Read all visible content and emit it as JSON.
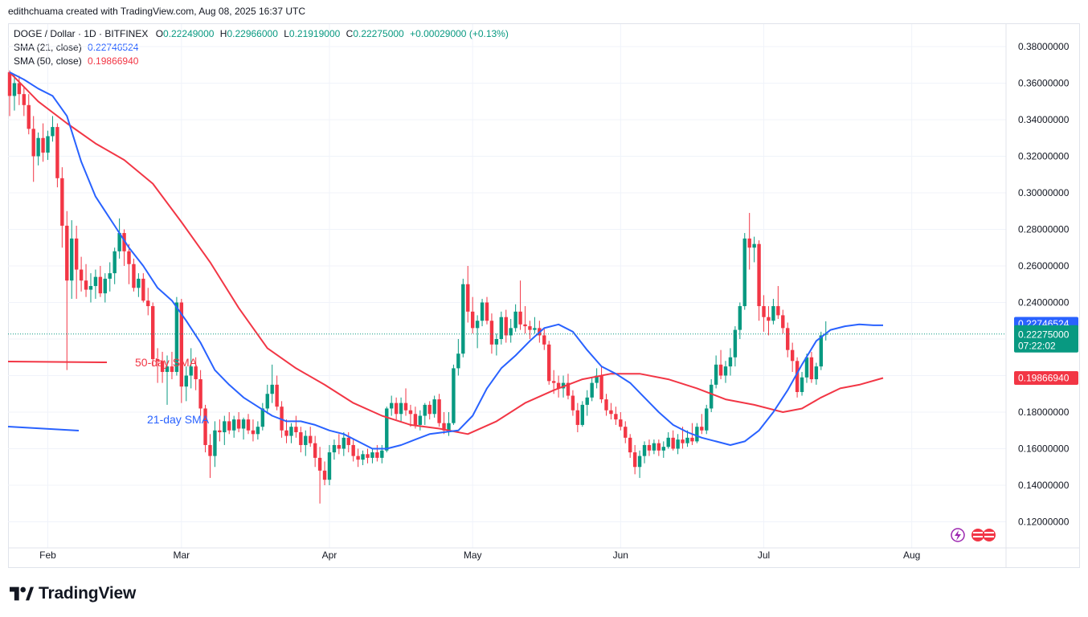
{
  "header": {
    "text": "edithchuama created with TradingView.com, Aug 08, 2025 16:37 UTC"
  },
  "legend": {
    "symbol": "DOGE / Dollar · 1D · BITFINEX",
    "open_label": "O",
    "open": "0.22249000",
    "high_label": "H",
    "high": "0.22966000",
    "low_label": "L",
    "low": "0.21919000",
    "close_label": "C",
    "close": "0.22275000",
    "change": "+0.00029000 (+0.13%)",
    "sma21_label": "SMA (21, close)",
    "sma21_value": "0.22746524",
    "sma50_label": "SMA (50, close)",
    "sma50_value": "0.19866940"
  },
  "footer": {
    "brand": "TradingView"
  },
  "chart_data": {
    "type": "candlestick",
    "title": "DOGE / Dollar · 1D · BITFINEX",
    "y_range": [
      0.11,
      0.39
    ],
    "y_ticks": [
      "0.38000000",
      "0.36000000",
      "0.34000000",
      "0.32000000",
      "0.30000000",
      "0.28000000",
      "0.26000000",
      "0.24000000",
      "0.22000000",
      "0.20000000",
      "0.18000000",
      "0.16000000",
      "0.14000000",
      "0.12000000"
    ],
    "x_ticks": [
      {
        "label": "Feb",
        "day": 8
      },
      {
        "label": "Mar",
        "day": 36
      },
      {
        "label": "Apr",
        "day": 67
      },
      {
        "label": "May",
        "day": 97
      },
      {
        "label": "Jun",
        "day": 128
      },
      {
        "label": "Jul",
        "day": 158
      },
      {
        "label": "Aug",
        "day": 189
      }
    ],
    "price_badges": {
      "sma21": "0.22746524",
      "last": "0.22275000",
      "countdown": "07:22:02",
      "sma50": "0.19866940"
    },
    "annotations": {
      "sma50": "50-day SMA",
      "sma21": "21-day SMA"
    },
    "colors": {
      "up": "#089981",
      "down": "#f23645",
      "sma21": "#2962ff",
      "sma50": "#f23645",
      "grid": "#f0f3fa"
    },
    "ohlc": [
      [
        0.366,
        0.367,
        0.342,
        0.353
      ],
      [
        0.353,
        0.365,
        0.345,
        0.36
      ],
      [
        0.36,
        0.364,
        0.348,
        0.354
      ],
      [
        0.354,
        0.358,
        0.342,
        0.348
      ],
      [
        0.348,
        0.354,
        0.332,
        0.335
      ],
      [
        0.335,
        0.342,
        0.306,
        0.32
      ],
      [
        0.32,
        0.333,
        0.315,
        0.33
      ],
      [
        0.33,
        0.338,
        0.317,
        0.322
      ],
      [
        0.322,
        0.334,
        0.318,
        0.331
      ],
      [
        0.331,
        0.342,
        0.328,
        0.336
      ],
      [
        0.336,
        0.338,
        0.303,
        0.308
      ],
      [
        0.308,
        0.314,
        0.27,
        0.282
      ],
      [
        0.282,
        0.29,
        0.203,
        0.252
      ],
      [
        0.252,
        0.285,
        0.242,
        0.275
      ],
      [
        0.275,
        0.282,
        0.242,
        0.258
      ],
      [
        0.258,
        0.265,
        0.246,
        0.252
      ],
      [
        0.252,
        0.261,
        0.243,
        0.247
      ],
      [
        0.247,
        0.256,
        0.24,
        0.249
      ],
      [
        0.249,
        0.258,
        0.242,
        0.254
      ],
      [
        0.254,
        0.26,
        0.243,
        0.245
      ],
      [
        0.245,
        0.256,
        0.24,
        0.253
      ],
      [
        0.253,
        0.262,
        0.246,
        0.256
      ],
      [
        0.256,
        0.27,
        0.25,
        0.268
      ],
      [
        0.268,
        0.286,
        0.264,
        0.278
      ],
      [
        0.278,
        0.28,
        0.26,
        0.268
      ],
      [
        0.268,
        0.272,
        0.25,
        0.261
      ],
      [
        0.261,
        0.264,
        0.246,
        0.248
      ],
      [
        0.248,
        0.256,
        0.243,
        0.253
      ],
      [
        0.253,
        0.256,
        0.24,
        0.241
      ],
      [
        0.241,
        0.248,
        0.233,
        0.238
      ],
      [
        0.238,
        0.24,
        0.205,
        0.209
      ],
      [
        0.209,
        0.215,
        0.196,
        0.208
      ],
      [
        0.208,
        0.213,
        0.196,
        0.202
      ],
      [
        0.202,
        0.211,
        0.184,
        0.205
      ],
      [
        0.205,
        0.213,
        0.198,
        0.202
      ],
      [
        0.202,
        0.243,
        0.2,
        0.24
      ],
      [
        0.24,
        0.242,
        0.185,
        0.194
      ],
      [
        0.194,
        0.205,
        0.186,
        0.2
      ],
      [
        0.2,
        0.215,
        0.193,
        0.205
      ],
      [
        0.205,
        0.21,
        0.192,
        0.198
      ],
      [
        0.198,
        0.203,
        0.178,
        0.182
      ],
      [
        0.182,
        0.184,
        0.158,
        0.162
      ],
      [
        0.162,
        0.168,
        0.144,
        0.156
      ],
      [
        0.156,
        0.175,
        0.15,
        0.17
      ],
      [
        0.17,
        0.176,
        0.164,
        0.169
      ],
      [
        0.169,
        0.178,
        0.162,
        0.175
      ],
      [
        0.175,
        0.18,
        0.168,
        0.17
      ],
      [
        0.17,
        0.178,
        0.166,
        0.176
      ],
      [
        0.176,
        0.18,
        0.169,
        0.171
      ],
      [
        0.171,
        0.177,
        0.165,
        0.176
      ],
      [
        0.176,
        0.179,
        0.168,
        0.17
      ],
      [
        0.17,
        0.176,
        0.164,
        0.168
      ],
      [
        0.168,
        0.175,
        0.165,
        0.172
      ],
      [
        0.172,
        0.185,
        0.17,
        0.182
      ],
      [
        0.182,
        0.195,
        0.179,
        0.19
      ],
      [
        0.19,
        0.206,
        0.185,
        0.195
      ],
      [
        0.195,
        0.2,
        0.181,
        0.183
      ],
      [
        0.183,
        0.186,
        0.166,
        0.17
      ],
      [
        0.17,
        0.176,
        0.163,
        0.167
      ],
      [
        0.167,
        0.174,
        0.163,
        0.172
      ],
      [
        0.172,
        0.178,
        0.166,
        0.169
      ],
      [
        0.169,
        0.172,
        0.158,
        0.162
      ],
      [
        0.162,
        0.17,
        0.156,
        0.167
      ],
      [
        0.167,
        0.172,
        0.161,
        0.163
      ],
      [
        0.163,
        0.167,
        0.15,
        0.155
      ],
      [
        0.155,
        0.161,
        0.13,
        0.148
      ],
      [
        0.148,
        0.153,
        0.14,
        0.143
      ],
      [
        0.143,
        0.162,
        0.14,
        0.158
      ],
      [
        0.158,
        0.165,
        0.154,
        0.162
      ],
      [
        0.162,
        0.168,
        0.157,
        0.16
      ],
      [
        0.16,
        0.169,
        0.156,
        0.166
      ],
      [
        0.166,
        0.169,
        0.158,
        0.162
      ],
      [
        0.162,
        0.165,
        0.153,
        0.156
      ],
      [
        0.156,
        0.16,
        0.15,
        0.154
      ],
      [
        0.154,
        0.159,
        0.151,
        0.157
      ],
      [
        0.157,
        0.16,
        0.152,
        0.155
      ],
      [
        0.155,
        0.16,
        0.152,
        0.158
      ],
      [
        0.158,
        0.162,
        0.153,
        0.155
      ],
      [
        0.155,
        0.162,
        0.152,
        0.159
      ],
      [
        0.159,
        0.183,
        0.158,
        0.182
      ],
      [
        0.182,
        0.189,
        0.178,
        0.185
      ],
      [
        0.185,
        0.188,
        0.176,
        0.179
      ],
      [
        0.179,
        0.188,
        0.175,
        0.185
      ],
      [
        0.185,
        0.193,
        0.178,
        0.181
      ],
      [
        0.181,
        0.184,
        0.172,
        0.179
      ],
      [
        0.179,
        0.183,
        0.171,
        0.173
      ],
      [
        0.173,
        0.181,
        0.17,
        0.178
      ],
      [
        0.178,
        0.185,
        0.173,
        0.184
      ],
      [
        0.184,
        0.186,
        0.176,
        0.179
      ],
      [
        0.179,
        0.189,
        0.177,
        0.187
      ],
      [
        0.187,
        0.19,
        0.172,
        0.174
      ],
      [
        0.174,
        0.18,
        0.168,
        0.17
      ],
      [
        0.17,
        0.18,
        0.167,
        0.174
      ],
      [
        0.174,
        0.206,
        0.173,
        0.204
      ],
      [
        0.204,
        0.22,
        0.2,
        0.212
      ],
      [
        0.212,
        0.253,
        0.21,
        0.25
      ],
      [
        0.25,
        0.26,
        0.229,
        0.235
      ],
      [
        0.235,
        0.243,
        0.223,
        0.226
      ],
      [
        0.226,
        0.233,
        0.215,
        0.23
      ],
      [
        0.23,
        0.242,
        0.227,
        0.24
      ],
      [
        0.24,
        0.243,
        0.228,
        0.23
      ],
      [
        0.23,
        0.234,
        0.212,
        0.217
      ],
      [
        0.217,
        0.223,
        0.211,
        0.22
      ],
      [
        0.22,
        0.235,
        0.217,
        0.232
      ],
      [
        0.232,
        0.236,
        0.218,
        0.222
      ],
      [
        0.222,
        0.231,
        0.218,
        0.226
      ],
      [
        0.226,
        0.239,
        0.224,
        0.235
      ],
      [
        0.235,
        0.252,
        0.225,
        0.228
      ],
      [
        0.228,
        0.238,
        0.223,
        0.227
      ],
      [
        0.227,
        0.23,
        0.22,
        0.225
      ],
      [
        0.225,
        0.232,
        0.223,
        0.226
      ],
      [
        0.226,
        0.23,
        0.218,
        0.222
      ],
      [
        0.222,
        0.226,
        0.214,
        0.217
      ],
      [
        0.217,
        0.219,
        0.195,
        0.197
      ],
      [
        0.197,
        0.203,
        0.19,
        0.196
      ],
      [
        0.196,
        0.2,
        0.188,
        0.193
      ],
      [
        0.193,
        0.2,
        0.188,
        0.196
      ],
      [
        0.196,
        0.201,
        0.187,
        0.189
      ],
      [
        0.189,
        0.192,
        0.178,
        0.181
      ],
      [
        0.181,
        0.185,
        0.169,
        0.173
      ],
      [
        0.173,
        0.186,
        0.172,
        0.184
      ],
      [
        0.184,
        0.192,
        0.178,
        0.188
      ],
      [
        0.188,
        0.199,
        0.186,
        0.196
      ],
      [
        0.196,
        0.204,
        0.193,
        0.2
      ],
      [
        0.2,
        0.205,
        0.185,
        0.187
      ],
      [
        0.187,
        0.19,
        0.178,
        0.181
      ],
      [
        0.181,
        0.185,
        0.176,
        0.179
      ],
      [
        0.179,
        0.183,
        0.173,
        0.176
      ],
      [
        0.176,
        0.18,
        0.17,
        0.172
      ],
      [
        0.172,
        0.175,
        0.163,
        0.166
      ],
      [
        0.166,
        0.168,
        0.155,
        0.158
      ],
      [
        0.158,
        0.162,
        0.146,
        0.15
      ],
      [
        0.15,
        0.159,
        0.144,
        0.156
      ],
      [
        0.156,
        0.164,
        0.152,
        0.162
      ],
      [
        0.162,
        0.165,
        0.156,
        0.159
      ],
      [
        0.159,
        0.165,
        0.157,
        0.163
      ],
      [
        0.163,
        0.165,
        0.156,
        0.159
      ],
      [
        0.159,
        0.164,
        0.155,
        0.161
      ],
      [
        0.161,
        0.169,
        0.16,
        0.166
      ],
      [
        0.166,
        0.17,
        0.159,
        0.16
      ],
      [
        0.16,
        0.168,
        0.157,
        0.165
      ],
      [
        0.165,
        0.172,
        0.16,
        0.163
      ],
      [
        0.163,
        0.17,
        0.161,
        0.166
      ],
      [
        0.166,
        0.174,
        0.162,
        0.164
      ],
      [
        0.164,
        0.174,
        0.163,
        0.172
      ],
      [
        0.172,
        0.179,
        0.168,
        0.17
      ],
      [
        0.17,
        0.184,
        0.168,
        0.182
      ],
      [
        0.182,
        0.198,
        0.18,
        0.195
      ],
      [
        0.195,
        0.211,
        0.193,
        0.206
      ],
      [
        0.206,
        0.214,
        0.198,
        0.2
      ],
      [
        0.2,
        0.208,
        0.196,
        0.205
      ],
      [
        0.205,
        0.215,
        0.2,
        0.21
      ],
      [
        0.21,
        0.227,
        0.205,
        0.225
      ],
      [
        0.225,
        0.24,
        0.22,
        0.238
      ],
      [
        0.238,
        0.278,
        0.236,
        0.275
      ],
      [
        0.275,
        0.289,
        0.258,
        0.27
      ],
      [
        0.27,
        0.276,
        0.262,
        0.272
      ],
      [
        0.272,
        0.274,
        0.23,
        0.238
      ],
      [
        0.238,
        0.244,
        0.224,
        0.232
      ],
      [
        0.232,
        0.238,
        0.222,
        0.23
      ],
      [
        0.23,
        0.242,
        0.228,
        0.238
      ],
      [
        0.238,
        0.249,
        0.231,
        0.233
      ],
      [
        0.233,
        0.236,
        0.223,
        0.226
      ],
      [
        0.226,
        0.229,
        0.21,
        0.214
      ],
      [
        0.214,
        0.218,
        0.202,
        0.208
      ],
      [
        0.208,
        0.21,
        0.188,
        0.191
      ],
      [
        0.191,
        0.202,
        0.189,
        0.199
      ],
      [
        0.199,
        0.212,
        0.196,
        0.21
      ],
      [
        0.21,
        0.213,
        0.196,
        0.198
      ],
      [
        0.198,
        0.207,
        0.195,
        0.205
      ],
      [
        0.205,
        0.224,
        0.203,
        0.222
      ],
      [
        0.2225,
        0.2297,
        0.2192,
        0.2228
      ]
    ],
    "sma21": [
      [
        0,
        0.366
      ],
      [
        3,
        0.362
      ],
      [
        6,
        0.357
      ],
      [
        9,
        0.353
      ],
      [
        12,
        0.342
      ],
      [
        15,
        0.317
      ],
      [
        18,
        0.298
      ],
      [
        22,
        0.282
      ],
      [
        25,
        0.27
      ],
      [
        28,
        0.26
      ],
      [
        31,
        0.248
      ],
      [
        34,
        0.241
      ],
      [
        37,
        0.23
      ],
      [
        40,
        0.218
      ],
      [
        43,
        0.203
      ],
      [
        46,
        0.195
      ],
      [
        49,
        0.188
      ],
      [
        52,
        0.183
      ],
      [
        55,
        0.178
      ],
      [
        58,
        0.175
      ],
      [
        61,
        0.175
      ],
      [
        64,
        0.173
      ],
      [
        67,
        0.17
      ],
      [
        70,
        0.168
      ],
      [
        73,
        0.164
      ],
      [
        76,
        0.16
      ],
      [
        79,
        0.16
      ],
      [
        82,
        0.162
      ],
      [
        85,
        0.165
      ],
      [
        88,
        0.168
      ],
      [
        91,
        0.169
      ],
      [
        94,
        0.17
      ],
      [
        97,
        0.178
      ],
      [
        100,
        0.193
      ],
      [
        103,
        0.204
      ],
      [
        106,
        0.211
      ],
      [
        109,
        0.219
      ],
      [
        112,
        0.226
      ],
      [
        115,
        0.228
      ],
      [
        118,
        0.224
      ],
      [
        121,
        0.214
      ],
      [
        124,
        0.205
      ],
      [
        127,
        0.201
      ],
      [
        130,
        0.196
      ],
      [
        133,
        0.188
      ],
      [
        136,
        0.18
      ],
      [
        139,
        0.173
      ],
      [
        142,
        0.169
      ],
      [
        145,
        0.166
      ],
      [
        148,
        0.164
      ],
      [
        151,
        0.162
      ],
      [
        154,
        0.164
      ],
      [
        157,
        0.17
      ],
      [
        160,
        0.18
      ],
      [
        163,
        0.192
      ],
      [
        166,
        0.206
      ],
      [
        169,
        0.219
      ],
      [
        172,
        0.225
      ],
      [
        175,
        0.227
      ],
      [
        178,
        0.228
      ],
      [
        181,
        0.2275
      ],
      [
        183,
        0.2275
      ]
    ],
    "sma50": [
      [
        0,
        0.366
      ],
      [
        6,
        0.35
      ],
      [
        12,
        0.338
      ],
      [
        18,
        0.327
      ],
      [
        24,
        0.318
      ],
      [
        30,
        0.305
      ],
      [
        36,
        0.284
      ],
      [
        42,
        0.262
      ],
      [
        48,
        0.237
      ],
      [
        54,
        0.215
      ],
      [
        60,
        0.204
      ],
      [
        66,
        0.195
      ],
      [
        72,
        0.185
      ],
      [
        78,
        0.178
      ],
      [
        84,
        0.173
      ],
      [
        90,
        0.171
      ],
      [
        96,
        0.168
      ],
      [
        102,
        0.175
      ],
      [
        108,
        0.185
      ],
      [
        114,
        0.192
      ],
      [
        120,
        0.198
      ],
      [
        126,
        0.201
      ],
      [
        132,
        0.201
      ],
      [
        138,
        0.198
      ],
      [
        144,
        0.193
      ],
      [
        150,
        0.187
      ],
      [
        156,
        0.184
      ],
      [
        162,
        0.18
      ],
      [
        166,
        0.182
      ],
      [
        170,
        0.188
      ],
      [
        174,
        0.193
      ],
      [
        178,
        0.195
      ],
      [
        183,
        0.1987
      ]
    ]
  }
}
